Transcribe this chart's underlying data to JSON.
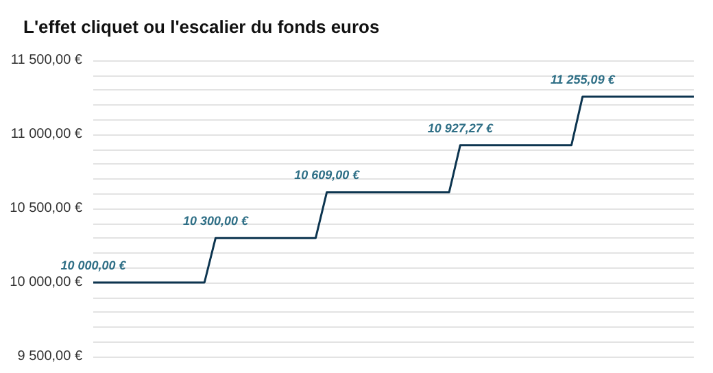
{
  "chart_data": {
    "type": "line",
    "title": "L'effet cliquet ou l'escalier du fonds euros",
    "categories": [
      null,
      null,
      null,
      null,
      null,
      null,
      null,
      null,
      null,
      null,
      null,
      null,
      null,
      null,
      null,
      null,
      null,
      null,
      null,
      null,
      null,
      null,
      null,
      null,
      null,
      null,
      null,
      null,
      null,
      null,
      null,
      null,
      null,
      null,
      null,
      null,
      null,
      null,
      null,
      null,
      null,
      null,
      null,
      null,
      null,
      null,
      null,
      null,
      null,
      null,
      null,
      null,
      null,
      null,
      null
    ],
    "series": [
      {
        "color": "#0d3550",
        "values": [
          10000,
          10000,
          10000,
          10000,
          10000,
          10000,
          10000,
          10000,
          10000,
          10000,
          10000,
          10300,
          10300,
          10300,
          10300,
          10300,
          10300,
          10300,
          10300,
          10300,
          10300,
          10609,
          10609,
          10609,
          10609,
          10609,
          10609,
          10609,
          10609,
          10609,
          10609,
          10609,
          10609,
          10927.27,
          10927.27,
          10927.27,
          10927.27,
          10927.27,
          10927.27,
          10927.27,
          10927.27,
          10927.27,
          10927.27,
          10927.27,
          11255.09,
          11255.09,
          11255.09,
          11255.09,
          11255.09,
          11255.09,
          11255.09,
          11255.09,
          11255.09,
          11255.09,
          11255.09
        ],
        "value_labels": [
          "10 000,00 €",
          null,
          null,
          null,
          null,
          null,
          null,
          null,
          null,
          null,
          null,
          "10 300,00 €",
          null,
          null,
          null,
          null,
          null,
          null,
          null,
          null,
          null,
          "10 609,00 €",
          null,
          null,
          null,
          null,
          null,
          null,
          null,
          null,
          null,
          null,
          null,
          "10 927,27 €",
          null,
          null,
          null,
          null,
          null,
          null,
          null,
          null,
          null,
          null,
          "11 255,09 €",
          null,
          null,
          null,
          null,
          null,
          null,
          null,
          null,
          null,
          null
        ]
      }
    ],
    "ylim": [
      9500,
      11500
    ],
    "yticks": [
      {
        "value": 9500,
        "label": "9 500,00 €"
      },
      {
        "value": 9600,
        "label": null
      },
      {
        "value": 9700,
        "label": null
      },
      {
        "value": 9800,
        "label": null
      },
      {
        "value": 9900,
        "label": null
      },
      {
        "value": 10000,
        "label": "10 000,00 €"
      },
      {
        "value": 10100,
        "label": null
      },
      {
        "value": 10200,
        "label": null
      },
      {
        "value": 10300,
        "label": null
      },
      {
        "value": 10400,
        "label": null
      },
      {
        "value": 10500,
        "label": "10 500,00 €"
      },
      {
        "value": 10600,
        "label": null
      },
      {
        "value": 10700,
        "label": null
      },
      {
        "value": 10800,
        "label": null
      },
      {
        "value": 10900,
        "label": null
      },
      {
        "value": 11000,
        "label": "11 000,00 €"
      },
      {
        "value": 11100,
        "label": null
      },
      {
        "value": 11200,
        "label": null
      },
      {
        "value": 11300,
        "label": null
      },
      {
        "value": 11400,
        "label": null
      },
      {
        "value": 11500,
        "label": "11 500,00 €"
      }
    ],
    "grid": true
  }
}
